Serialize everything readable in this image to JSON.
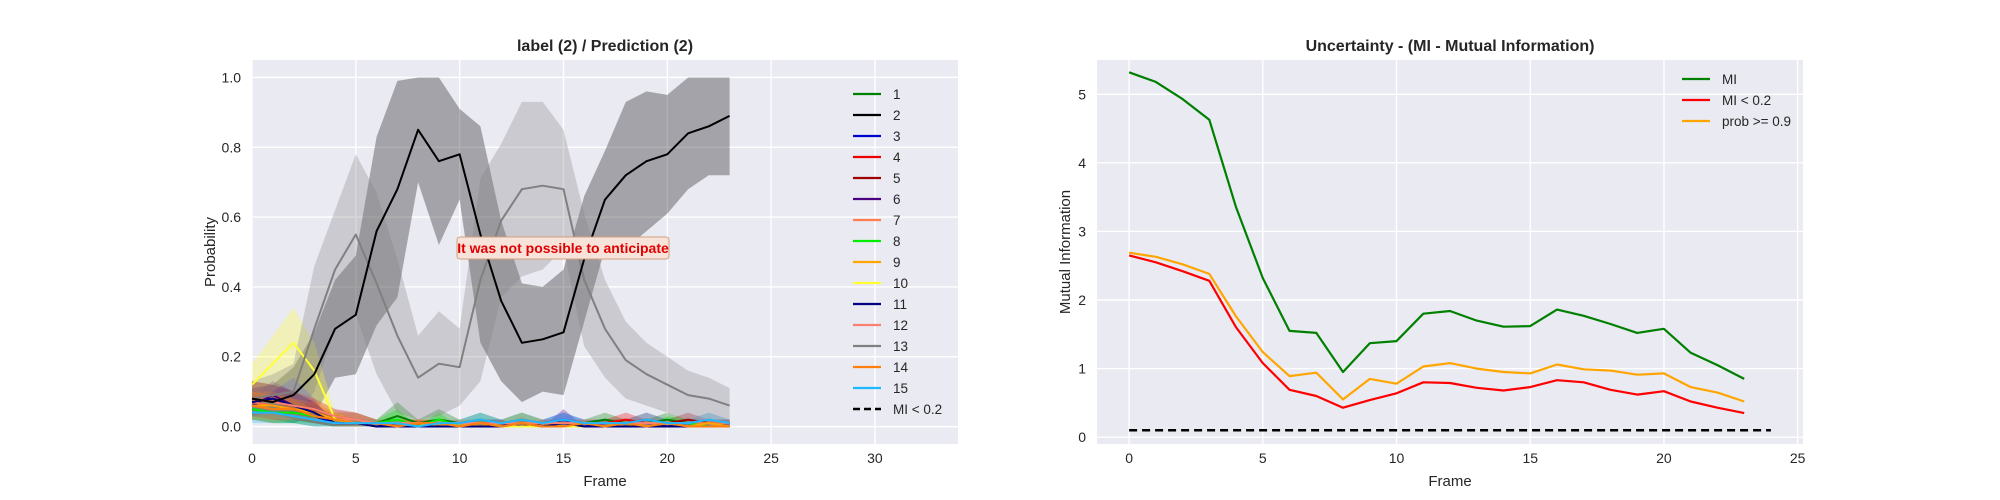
{
  "chart_data": [
    {
      "type": "line",
      "title": "label (2) / Prediction (2)",
      "xlabel": "Frame",
      "ylabel": "Probability",
      "xlim": [
        0,
        34
      ],
      "ylim": [
        -0.05,
        1.05
      ],
      "xticks": [
        0,
        5,
        10,
        15,
        20,
        25,
        30
      ],
      "yticks": [
        0.0,
        0.2,
        0.4,
        0.6,
        0.8,
        1.0
      ],
      "grid": true,
      "legend_position": "right",
      "annotation": {
        "text": "It was not possible to anticipate",
        "x": 15,
        "y": 0.6,
        "color": "#e00000"
      },
      "x": [
        0,
        1,
        2,
        3,
        4,
        5,
        6,
        7,
        8,
        9,
        10,
        11,
        12,
        13,
        14,
        15,
        16,
        17,
        18,
        19,
        20,
        21,
        22,
        23
      ],
      "series": [
        {
          "name": "1",
          "color": "#008000",
          "values": [
            0.05,
            0.04,
            0.04,
            0.03,
            0.02,
            0.02,
            0.01,
            0.03,
            0.01,
            0.02,
            0.01,
            0.02,
            0.01,
            0.02,
            0.01,
            0.01,
            0.01,
            0.02,
            0.01,
            0.01,
            0.02,
            0.01,
            0.01,
            0.01
          ],
          "band": [
            0.03,
            0.03,
            0.03,
            0.03,
            0.02,
            0.02,
            0.01,
            0.04,
            0.01,
            0.03,
            0.01,
            0.02,
            0.01,
            0.02,
            0.01,
            0.01,
            0.01,
            0.02,
            0.01,
            0.01,
            0.02,
            0.01,
            0.01,
            0.01
          ]
        },
        {
          "name": "2",
          "color": "#000000",
          "values": [
            0.08,
            0.07,
            0.09,
            0.15,
            0.28,
            0.32,
            0.56,
            0.68,
            0.85,
            0.76,
            0.78,
            0.55,
            0.36,
            0.24,
            0.25,
            0.27,
            0.48,
            0.65,
            0.72,
            0.76,
            0.78,
            0.84,
            0.86,
            0.89
          ],
          "band": [
            0.05,
            0.05,
            0.08,
            0.12,
            0.14,
            0.17,
            0.27,
            0.31,
            0.15,
            0.24,
            0.13,
            0.31,
            0.23,
            0.17,
            0.15,
            0.18,
            0.18,
            0.14,
            0.21,
            0.2,
            0.17,
            0.16,
            0.14,
            0.17
          ]
        },
        {
          "name": "3",
          "color": "#0000cd",
          "values": [
            0.06,
            0.06,
            0.05,
            0.03,
            0.01,
            0.01,
            0.0,
            0.01,
            0.0,
            0.0,
            0.0,
            0.01,
            0.01,
            0.0,
            0.01,
            0.02,
            0.01,
            0.01,
            0.01,
            0.01,
            0.0,
            0.01,
            0.01,
            0.01
          ],
          "band": [
            0.03,
            0.03,
            0.03,
            0.02,
            0.01,
            0.01,
            0.0,
            0.01,
            0.0,
            0.0,
            0.0,
            0.01,
            0.01,
            0.0,
            0.01,
            0.02,
            0.01,
            0.01,
            0.01,
            0.01,
            0.0,
            0.01,
            0.01,
            0.01
          ]
        },
        {
          "name": "4",
          "color": "#ee0000",
          "values": [
            0.07,
            0.06,
            0.05,
            0.04,
            0.02,
            0.01,
            0.01,
            0.0,
            0.01,
            0.0,
            0.0,
            0.01,
            0.0,
            0.01,
            0.0,
            0.01,
            0.01,
            0.01,
            0.02,
            0.01,
            0.01,
            0.0,
            0.01,
            0.01
          ],
          "band": [
            0.04,
            0.04,
            0.03,
            0.03,
            0.02,
            0.01,
            0.01,
            0.0,
            0.01,
            0.0,
            0.0,
            0.01,
            0.0,
            0.01,
            0.0,
            0.01,
            0.01,
            0.01,
            0.02,
            0.01,
            0.01,
            0.0,
            0.01,
            0.01
          ]
        },
        {
          "name": "5",
          "color": "#a00000",
          "values": [
            0.08,
            0.07,
            0.06,
            0.05,
            0.03,
            0.02,
            0.01,
            0.01,
            0.01,
            0.01,
            0.0,
            0.01,
            0.01,
            0.0,
            0.01,
            0.01,
            0.0,
            0.01,
            0.01,
            0.02,
            0.01,
            0.02,
            0.01,
            0.01
          ],
          "band": [
            0.05,
            0.05,
            0.04,
            0.03,
            0.02,
            0.02,
            0.01,
            0.01,
            0.01,
            0.01,
            0.0,
            0.01,
            0.01,
            0.0,
            0.01,
            0.01,
            0.0,
            0.01,
            0.01,
            0.02,
            0.01,
            0.02,
            0.01,
            0.01
          ]
        },
        {
          "name": "6",
          "color": "#4b0082",
          "values": [
            0.06,
            0.09,
            0.06,
            0.04,
            0.01,
            0.01,
            0.0,
            0.0,
            0.01,
            0.0,
            0.0,
            0.0,
            0.01,
            0.0,
            0.0,
            0.02,
            0.0,
            0.01,
            0.0,
            0.01,
            0.0,
            0.01,
            0.0,
            0.0
          ],
          "band": [
            0.03,
            0.04,
            0.04,
            0.03,
            0.01,
            0.01,
            0.0,
            0.0,
            0.01,
            0.0,
            0.0,
            0.0,
            0.01,
            0.0,
            0.0,
            0.03,
            0.0,
            0.01,
            0.0,
            0.01,
            0.0,
            0.01,
            0.0,
            0.0
          ]
        },
        {
          "name": "7",
          "color": "#ff7f50",
          "values": [
            0.07,
            0.06,
            0.05,
            0.04,
            0.02,
            0.02,
            0.01,
            0.01,
            0.0,
            0.01,
            0.01,
            0.01,
            0.0,
            0.01,
            0.01,
            0.01,
            0.01,
            0.0,
            0.01,
            0.01,
            0.01,
            0.01,
            0.01,
            0.01
          ],
          "band": [
            0.04,
            0.04,
            0.03,
            0.03,
            0.02,
            0.02,
            0.01,
            0.01,
            0.0,
            0.01,
            0.01,
            0.01,
            0.0,
            0.01,
            0.01,
            0.01,
            0.01,
            0.0,
            0.01,
            0.01,
            0.01,
            0.01,
            0.01,
            0.01
          ]
        },
        {
          "name": "8",
          "color": "#00ee00",
          "values": [
            0.05,
            0.04,
            0.04,
            0.03,
            0.02,
            0.01,
            0.01,
            0.02,
            0.0,
            0.02,
            0.0,
            0.01,
            0.0,
            0.01,
            0.0,
            0.01,
            0.0,
            0.0,
            0.01,
            0.0,
            0.01,
            0.01,
            0.0,
            0.0
          ],
          "band": [
            0.03,
            0.03,
            0.03,
            0.02,
            0.02,
            0.01,
            0.01,
            0.03,
            0.0,
            0.02,
            0.0,
            0.01,
            0.0,
            0.01,
            0.0,
            0.01,
            0.0,
            0.0,
            0.01,
            0.0,
            0.02,
            0.01,
            0.0,
            0.0
          ]
        },
        {
          "name": "9",
          "color": "#ffa500",
          "values": [
            0.06,
            0.06,
            0.05,
            0.04,
            0.02,
            0.01,
            0.01,
            0.01,
            0.01,
            0.0,
            0.01,
            0.0,
            0.01,
            0.02,
            0.01,
            0.0,
            0.01,
            0.01,
            0.0,
            0.01,
            0.01,
            0.0,
            0.01,
            0.0
          ],
          "band": [
            0.04,
            0.04,
            0.03,
            0.03,
            0.02,
            0.01,
            0.01,
            0.01,
            0.01,
            0.0,
            0.01,
            0.0,
            0.01,
            0.02,
            0.01,
            0.0,
            0.01,
            0.01,
            0.0,
            0.01,
            0.01,
            0.0,
            0.01,
            0.0
          ]
        },
        {
          "name": "10",
          "color": "#ffff33",
          "values": [
            0.12,
            0.18,
            0.24,
            0.16,
            0.02,
            0.01,
            0.0,
            0.0,
            0.0,
            0.01,
            0.0,
            0.0,
            0.0,
            0.0,
            0.0,
            0.0,
            0.0,
            0.0,
            0.0,
            0.0,
            0.01,
            0.0,
            0.0,
            0.0
          ],
          "band": [
            0.06,
            0.08,
            0.1,
            0.08,
            0.02,
            0.01,
            0.0,
            0.0,
            0.0,
            0.01,
            0.0,
            0.0,
            0.0,
            0.0,
            0.0,
            0.0,
            0.0,
            0.0,
            0.0,
            0.0,
            0.01,
            0.0,
            0.0,
            0.0
          ]
        },
        {
          "name": "11",
          "color": "#000080",
          "values": [
            0.07,
            0.08,
            0.06,
            0.04,
            0.01,
            0.01,
            0.0,
            0.0,
            0.0,
            0.0,
            0.0,
            0.0,
            0.0,
            0.01,
            0.0,
            0.01,
            0.0,
            0.0,
            0.0,
            0.0,
            0.0,
            0.0,
            0.0,
            0.0
          ],
          "band": [
            0.04,
            0.04,
            0.04,
            0.03,
            0.01,
            0.01,
            0.0,
            0.0,
            0.0,
            0.0,
            0.0,
            0.0,
            0.0,
            0.01,
            0.0,
            0.01,
            0.0,
            0.0,
            0.0,
            0.0,
            0.0,
            0.0,
            0.0,
            0.0
          ]
        },
        {
          "name": "12",
          "color": "#fa8072",
          "values": [
            0.08,
            0.07,
            0.06,
            0.05,
            0.03,
            0.02,
            0.01,
            0.01,
            0.01,
            0.01,
            0.01,
            0.01,
            0.01,
            0.01,
            0.01,
            0.01,
            0.01,
            0.01,
            0.01,
            0.01,
            0.01,
            0.01,
            0.02,
            0.01
          ],
          "band": [
            0.05,
            0.05,
            0.04,
            0.03,
            0.02,
            0.02,
            0.01,
            0.01,
            0.01,
            0.01,
            0.01,
            0.01,
            0.01,
            0.01,
            0.01,
            0.01,
            0.01,
            0.01,
            0.01,
            0.01,
            0.01,
            0.01,
            0.02,
            0.01
          ]
        },
        {
          "name": "13",
          "color": "#808080",
          "values": [
            0.08,
            0.09,
            0.1,
            0.28,
            0.45,
            0.55,
            0.41,
            0.26,
            0.14,
            0.18,
            0.17,
            0.42,
            0.59,
            0.68,
            0.69,
            0.68,
            0.42,
            0.28,
            0.19,
            0.15,
            0.12,
            0.09,
            0.08,
            0.06
          ],
          "band": [
            0.05,
            0.06,
            0.08,
            0.18,
            0.17,
            0.23,
            0.26,
            0.22,
            0.12,
            0.15,
            0.11,
            0.29,
            0.22,
            0.25,
            0.24,
            0.17,
            0.19,
            0.14,
            0.11,
            0.09,
            0.08,
            0.07,
            0.06,
            0.05
          ]
        },
        {
          "name": "14",
          "color": "#ff7f0e",
          "values": [
            0.06,
            0.05,
            0.05,
            0.03,
            0.02,
            0.01,
            0.01,
            0.0,
            0.01,
            0.01,
            0.0,
            0.01,
            0.0,
            0.01,
            0.0,
            0.0,
            0.01,
            0.0,
            0.01,
            0.0,
            0.01,
            0.0,
            0.0,
            0.0
          ],
          "band": [
            0.04,
            0.04,
            0.03,
            0.02,
            0.02,
            0.01,
            0.01,
            0.0,
            0.01,
            0.01,
            0.0,
            0.01,
            0.0,
            0.02,
            0.0,
            0.0,
            0.01,
            0.0,
            0.01,
            0.0,
            0.01,
            0.0,
            0.0,
            0.0
          ]
        },
        {
          "name": "15",
          "color": "#1fb8ff",
          "values": [
            0.04,
            0.04,
            0.03,
            0.02,
            0.01,
            0.01,
            0.01,
            0.01,
            0.0,
            0.01,
            0.01,
            0.02,
            0.01,
            0.02,
            0.01,
            0.02,
            0.01,
            0.01,
            0.01,
            0.02,
            0.01,
            0.01,
            0.02,
            0.01
          ],
          "band": [
            0.03,
            0.03,
            0.02,
            0.02,
            0.01,
            0.01,
            0.01,
            0.01,
            0.0,
            0.01,
            0.01,
            0.02,
            0.01,
            0.02,
            0.01,
            0.02,
            0.01,
            0.01,
            0.01,
            0.02,
            0.01,
            0.01,
            0.02,
            0.01
          ]
        }
      ],
      "threshold": {
        "name": "MI < 0.2",
        "color": "#000000",
        "style": "dashed"
      }
    },
    {
      "type": "line",
      "title": "Uncertainty - (MI - Mutual Information)",
      "xlabel": "Frame",
      "ylabel": "Mutual Information",
      "xlim": [
        -1.2,
        25.2
      ],
      "ylim": [
        -0.1,
        5.5
      ],
      "xticks": [
        0,
        5,
        10,
        15,
        20,
        25
      ],
      "yticks": [
        0,
        1,
        2,
        3,
        4,
        5
      ],
      "grid": true,
      "legend_position": "top-right",
      "x": [
        0,
        1,
        2,
        3,
        4,
        5,
        6,
        7,
        8,
        9,
        10,
        11,
        12,
        13,
        14,
        15,
        16,
        17,
        18,
        19,
        20,
        21,
        22,
        23
      ],
      "series": [
        {
          "name": "MI",
          "color": "#008000",
          "values": [
            5.32,
            5.18,
            4.93,
            4.63,
            3.35,
            2.32,
            1.55,
            1.52,
            0.95,
            1.37,
            1.4,
            1.8,
            1.84,
            1.7,
            1.61,
            1.62,
            1.86,
            1.77,
            1.65,
            1.52,
            1.58,
            1.23,
            1.05,
            0.85
          ]
        },
        {
          "name": "MI < 0.2",
          "color": "#ff0000",
          "values": [
            2.65,
            2.55,
            2.42,
            2.28,
            1.6,
            1.08,
            0.69,
            0.6,
            0.43,
            0.54,
            0.64,
            0.8,
            0.79,
            0.72,
            0.68,
            0.73,
            0.83,
            0.8,
            0.69,
            0.62,
            0.67,
            0.52,
            0.43,
            0.35
          ]
        },
        {
          "name": "prob >= 0.9",
          "color": "#ffa500",
          "values": [
            2.69,
            2.63,
            2.52,
            2.38,
            1.76,
            1.24,
            0.89,
            0.94,
            0.55,
            0.85,
            0.78,
            1.03,
            1.08,
            1.0,
            0.95,
            0.93,
            1.06,
            0.99,
            0.97,
            0.91,
            0.93,
            0.73,
            0.65,
            0.52
          ]
        }
      ],
      "threshold": {
        "value": 0.1,
        "x": [
          0,
          24
        ],
        "color": "#000000",
        "style": "dashed"
      }
    }
  ]
}
